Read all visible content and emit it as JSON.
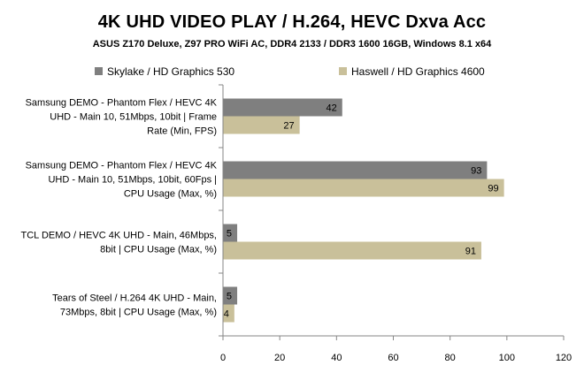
{
  "chart_data": {
    "type": "bar",
    "orientation": "horizontal",
    "title": "4K UHD VIDEO PLAY / H.264, HEVC Dxva Acc",
    "subtitle": "ASUS Z170 Deluxe, Z97 PRO WiFi AC,  DDR4 2133  / DDR3 1600 16GB, Windows 8.1 x64",
    "categories": [
      [
        "Samsung DEMO - Phantom Flex / HEVC 4K",
        "UHD - Main 10, 51Mbps, 10bit | Frame",
        "Rate (Min, FPS)"
      ],
      [
        "Samsung DEMO - Phantom Flex / HEVC 4K",
        "UHD - Main 10, 51Mbps, 10bit, 60Fps |",
        "CPU Usage (Max, %)"
      ],
      [
        "TCL DEMO / HEVC 4K UHD - Main, 46Mbps,",
        "8bit | CPU Usage (Max, %)"
      ],
      [
        "Tears of Steel / H.264 4K UHD - Main,",
        "73Mbps, 8bit | CPU Usage (Max, %)"
      ]
    ],
    "series": [
      {
        "name": "Skylake / HD Graphics 530",
        "color": "#7f7f7f",
        "values": [
          42,
          93,
          5,
          5
        ]
      },
      {
        "name": "Haswell / HD Graphics 4600",
        "color": "#c9c09a",
        "values": [
          27,
          99,
          91,
          4
        ]
      }
    ],
    "xlim": [
      0,
      120
    ],
    "xticks": [
      0,
      20,
      40,
      60,
      80,
      100,
      120
    ],
    "legend": "top",
    "grid": false
  }
}
